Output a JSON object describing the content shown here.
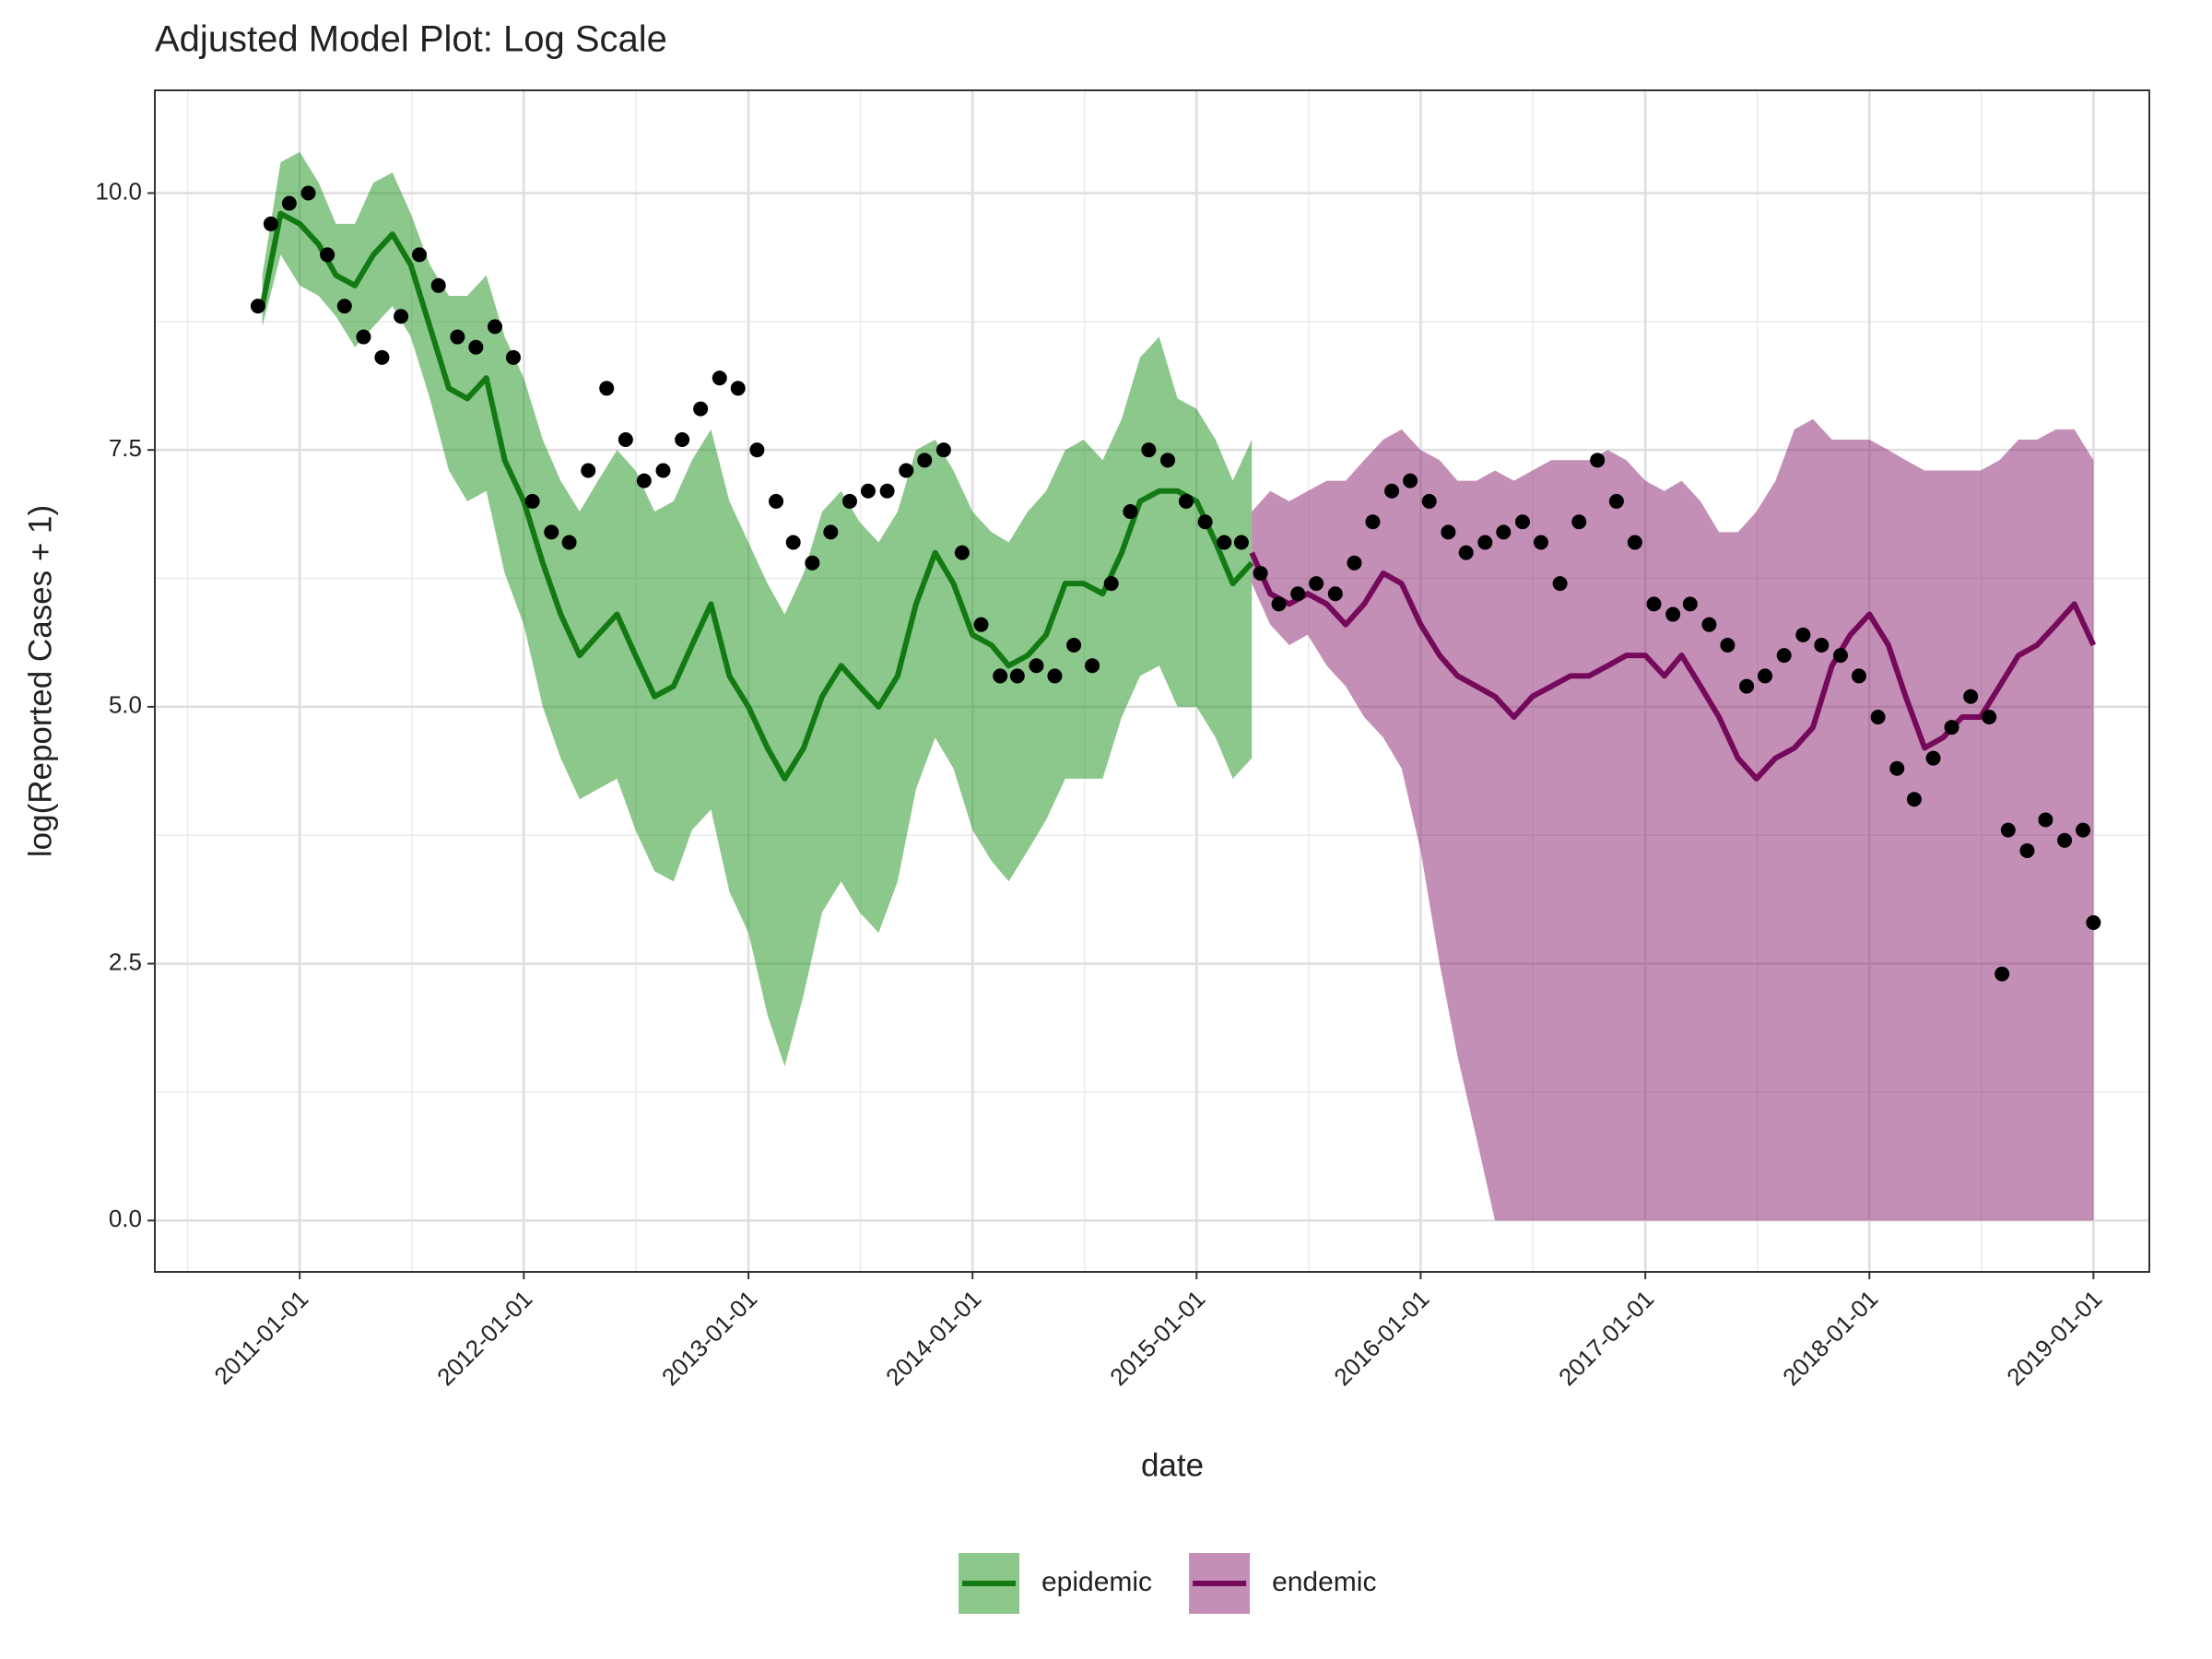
{
  "chart_data": {
    "type": "line",
    "title": "Adjusted Model Plot: Log Scale",
    "x_label": "date",
    "y_label": "log(Reported Cases + 1)",
    "xlim": [
      "2010-05-10",
      "2019-04-02"
    ],
    "xticks": [
      "2011-01-01",
      "2012-01-01",
      "2013-01-01",
      "2014-01-01",
      "2015-01-01",
      "2016-01-01",
      "2017-01-01",
      "2018-01-01",
      "2019-01-01"
    ],
    "ylim": [
      -0.5,
      11.0
    ],
    "yticks": [
      {
        "value": 0,
        "label": "0.0"
      },
      2.5,
      {
        "value": 5,
        "label": "5.0"
      },
      7.5,
      {
        "value": 10,
        "label": "10.0"
      }
    ],
    "grid": true,
    "legend": "bottom",
    "series": [
      {
        "name": "epidemic",
        "color": "#137a13",
        "band_color": "#1a8f1a",
        "x": [
          "2010-11-01",
          "2010-12-01",
          "2011-01-01",
          "2011-02-01",
          "2011-03-01",
          "2011-04-01",
          "2011-05-01",
          "2011-06-01",
          "2011-07-01",
          "2011-08-01",
          "2011-09-01",
          "2011-10-01",
          "2011-11-01",
          "2011-12-01",
          "2012-01-01",
          "2012-02-01",
          "2012-03-01",
          "2012-04-01",
          "2012-05-01",
          "2012-06-01",
          "2012-07-01",
          "2012-08-01",
          "2012-09-01",
          "2012-10-01",
          "2012-11-01",
          "2012-12-01",
          "2013-01-01",
          "2013-02-01",
          "2013-03-01",
          "2013-04-01",
          "2013-05-01",
          "2013-06-01",
          "2013-07-01",
          "2013-08-01",
          "2013-09-01",
          "2013-10-01",
          "2013-11-01",
          "2013-12-01",
          "2014-01-01",
          "2014-02-01",
          "2014-03-01",
          "2014-04-01",
          "2014-05-01",
          "2014-06-01",
          "2014-07-01",
          "2014-08-01",
          "2014-09-01",
          "2014-10-01",
          "2014-11-01",
          "2014-12-01",
          "2015-01-01",
          "2015-02-01",
          "2015-03-01",
          "2015-04-01"
        ],
        "values": [
          8.9,
          9.8,
          9.7,
          9.5,
          9.2,
          9.1,
          9.4,
          9.6,
          9.3,
          8.7,
          8.1,
          8.0,
          8.2,
          7.4,
          7.0,
          6.4,
          5.9,
          5.5,
          5.7,
          5.9,
          5.5,
          5.1,
          5.2,
          5.6,
          6.0,
          5.3,
          5.0,
          4.6,
          4.3,
          4.6,
          5.1,
          5.4,
          5.2,
          5.0,
          5.3,
          6.0,
          6.5,
          6.2,
          5.7,
          5.6,
          5.4,
          5.5,
          5.7,
          6.2,
          6.2,
          6.1,
          6.5,
          7.0,
          7.1,
          7.1,
          7.0,
          6.6,
          6.2,
          6.4
        ],
        "lower": [
          8.7,
          9.4,
          9.1,
          9.0,
          8.8,
          8.5,
          8.7,
          8.9,
          8.6,
          8.0,
          7.3,
          7.0,
          7.1,
          6.3,
          5.8,
          5.0,
          4.5,
          4.1,
          4.2,
          4.3,
          3.8,
          3.4,
          3.3,
          3.8,
          4.0,
          3.2,
          2.8,
          2.0,
          1.5,
          2.2,
          3.0,
          3.3,
          3.0,
          2.8,
          3.3,
          4.2,
          4.7,
          4.4,
          3.8,
          3.5,
          3.3,
          3.6,
          3.9,
          4.3,
          4.3,
          4.3,
          4.9,
          5.3,
          5.4,
          5.0,
          5.0,
          4.7,
          4.3,
          4.5
        ],
        "upper": [
          9.2,
          10.3,
          10.4,
          10.1,
          9.7,
          9.7,
          10.1,
          10.2,
          9.8,
          9.3,
          9.0,
          9.0,
          9.2,
          8.6,
          8.2,
          7.6,
          7.2,
          6.9,
          7.2,
          7.5,
          7.3,
          6.9,
          7.0,
          7.4,
          7.7,
          7.0,
          6.6,
          6.2,
          5.9,
          6.3,
          6.9,
          7.1,
          6.8,
          6.6,
          6.9,
          7.5,
          7.6,
          7.3,
          6.9,
          6.7,
          6.6,
          6.9,
          7.1,
          7.5,
          7.6,
          7.4,
          7.8,
          8.4,
          8.6,
          8.0,
          7.9,
          7.6,
          7.2,
          7.6
        ]
      },
      {
        "name": "endemic",
        "color": "#760a5a",
        "band_color": "#8a1f6e",
        "x": [
          "2015-04-01",
          "2015-05-01",
          "2015-06-01",
          "2015-07-01",
          "2015-08-01",
          "2015-09-01",
          "2015-10-01",
          "2015-11-01",
          "2015-12-01",
          "2016-01-01",
          "2016-02-01",
          "2016-03-01",
          "2016-04-01",
          "2016-05-01",
          "2016-06-01",
          "2016-07-01",
          "2016-08-01",
          "2016-09-01",
          "2016-10-01",
          "2016-11-01",
          "2016-12-01",
          "2017-01-01",
          "2017-02-01",
          "2017-03-01",
          "2017-04-01",
          "2017-05-01",
          "2017-06-01",
          "2017-07-01",
          "2017-08-01",
          "2017-09-01",
          "2017-10-01",
          "2017-11-01",
          "2017-12-01",
          "2018-01-01",
          "2018-02-01",
          "2018-03-01",
          "2018-04-01",
          "2018-05-01",
          "2018-06-01",
          "2018-07-01",
          "2018-08-01",
          "2018-09-01",
          "2018-10-01",
          "2018-11-01",
          "2018-12-01",
          "2019-01-01"
        ],
        "values": [
          6.5,
          6.1,
          6.0,
          6.1,
          6.0,
          5.8,
          6.0,
          6.3,
          6.2,
          5.8,
          5.5,
          5.3,
          5.2,
          5.1,
          4.9,
          5.1,
          5.2,
          5.3,
          5.3,
          5.4,
          5.5,
          5.5,
          5.3,
          5.5,
          5.2,
          4.9,
          4.5,
          4.3,
          4.5,
          4.6,
          4.8,
          5.4,
          5.7,
          5.9,
          5.6,
          5.1,
          4.6,
          4.7,
          4.9,
          4.9,
          5.2,
          5.5,
          5.6,
          5.8,
          6.0,
          5.6
        ],
        "lower": [
          6.2,
          5.8,
          5.6,
          5.7,
          5.4,
          5.2,
          4.9,
          4.7,
          4.4,
          3.6,
          2.5,
          1.6,
          0.8,
          0,
          0,
          0,
          0,
          0,
          0,
          0,
          0,
          0,
          0,
          0,
          0,
          0,
          0,
          0,
          0,
          0,
          0,
          0,
          0,
          0,
          0,
          0,
          0,
          0,
          0,
          0,
          0,
          0,
          0,
          0,
          0,
          0
        ],
        "upper": [
          6.9,
          7.1,
          7.0,
          7.1,
          7.2,
          7.2,
          7.4,
          7.6,
          7.7,
          7.5,
          7.4,
          7.2,
          7.2,
          7.3,
          7.2,
          7.3,
          7.4,
          7.4,
          7.4,
          7.5,
          7.4,
          7.2,
          7.1,
          7.2,
          7.0,
          6.7,
          6.7,
          6.9,
          7.2,
          7.7,
          7.8,
          7.6,
          7.6,
          7.6,
          7.5,
          7.4,
          7.3,
          7.3,
          7.3,
          7.3,
          7.4,
          7.6,
          7.6,
          7.7,
          7.7,
          7.4
        ]
      }
    ],
    "points": {
      "color": "#000000",
      "x": [
        "2010-10-25",
        "2010-11-15",
        "2010-12-15",
        "2011-01-15",
        "2011-02-15",
        "2011-03-15",
        "2011-04-15",
        "2011-05-15",
        "2011-06-15",
        "2011-07-15",
        "2011-08-15",
        "2011-09-15",
        "2011-10-15",
        "2011-11-15",
        "2011-12-15",
        "2012-01-15",
        "2012-02-15",
        "2012-03-15",
        "2012-04-15",
        "2012-05-15",
        "2012-06-15",
        "2012-07-15",
        "2012-08-15",
        "2012-09-15",
        "2012-10-15",
        "2012-11-15",
        "2012-12-15",
        "2013-01-15",
        "2013-02-15",
        "2013-03-15",
        "2013-04-15",
        "2013-05-15",
        "2013-06-15",
        "2013-07-15",
        "2013-08-15",
        "2013-09-15",
        "2013-10-15",
        "2013-11-15",
        "2013-12-15",
        "2014-01-15",
        "2014-02-15",
        "2014-03-15",
        "2014-04-15",
        "2014-05-15",
        "2014-06-15",
        "2014-07-15",
        "2014-08-15",
        "2014-09-15",
        "2014-10-15",
        "2014-11-15",
        "2014-12-15",
        "2015-01-15",
        "2015-02-15",
        "2015-03-15",
        "2015-04-15",
        "2015-05-15",
        "2015-06-15",
        "2015-07-15",
        "2015-08-15",
        "2015-09-15",
        "2015-10-15",
        "2015-11-15",
        "2015-12-15",
        "2016-01-15",
        "2016-02-15",
        "2016-03-15",
        "2016-04-15",
        "2016-05-15",
        "2016-06-15",
        "2016-07-15",
        "2016-08-15",
        "2016-09-15",
        "2016-10-15",
        "2016-11-15",
        "2016-12-15",
        "2017-01-15",
        "2017-02-15",
        "2017-03-15",
        "2017-04-15",
        "2017-05-15",
        "2017-06-15",
        "2017-07-15",
        "2017-08-15",
        "2017-09-15",
        "2017-10-15",
        "2017-11-15",
        "2017-12-15",
        "2018-01-15",
        "2018-02-15",
        "2018-03-15",
        "2018-04-15",
        "2018-05-15",
        "2018-06-15",
        "2018-07-15",
        "2018-08-05",
        "2018-08-15",
        "2018-09-15",
        "2018-10-15",
        "2018-11-15",
        "2018-12-15",
        "2019-01-01"
      ],
      "values": [
        8.9,
        9.7,
        9.9,
        10.0,
        9.4,
        8.9,
        8.6,
        8.4,
        8.8,
        9.4,
        9.1,
        8.6,
        8.5,
        8.7,
        8.4,
        7.0,
        6.7,
        6.6,
        7.3,
        8.1,
        7.6,
        7.2,
        7.3,
        7.6,
        7.9,
        8.2,
        8.1,
        7.5,
        7.0,
        6.6,
        6.4,
        6.7,
        7.0,
        7.1,
        7.1,
        7.3,
        7.4,
        7.5,
        6.5,
        5.8,
        5.3,
        5.3,
        5.4,
        5.3,
        5.6,
        5.4,
        6.2,
        6.9,
        7.5,
        7.4,
        7.0,
        6.8,
        6.6,
        6.6,
        6.3,
        6.0,
        6.1,
        6.2,
        6.1,
        6.4,
        6.8,
        7.1,
        7.2,
        7.0,
        6.7,
        6.5,
        6.6,
        6.7,
        6.8,
        6.6,
        6.2,
        6.8,
        7.4,
        7.0,
        6.6,
        6.0,
        5.9,
        6.0,
        5.8,
        5.6,
        5.2,
        5.3,
        5.5,
        5.7,
        5.6,
        5.5,
        5.3,
        4.9,
        4.4,
        4.1,
        4.5,
        4.8,
        5.1,
        4.9,
        2.4,
        3.8,
        3.6,
        3.9,
        3.7,
        3.8,
        2.9
      ]
    }
  }
}
